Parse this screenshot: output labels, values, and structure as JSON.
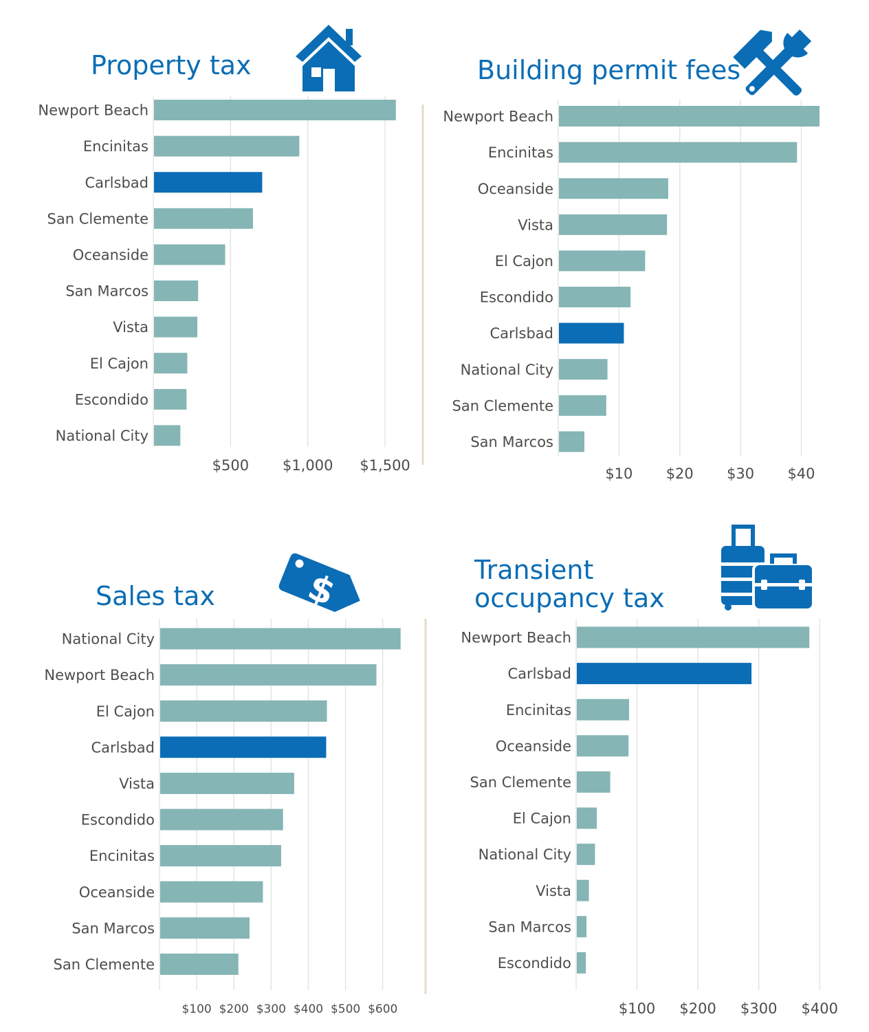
{
  "colors": {
    "bar": "#85b5b4",
    "highlight": "#0b6db5",
    "title": "#0b6db5",
    "text": "#4d4d4d",
    "grid": "#e1e1e1",
    "divider": "#e5dcc8",
    "icon": "#0b6db5"
  },
  "highlight_category": "Carlsbad",
  "chart_data": [
    {
      "type": "bar",
      "orientation": "horizontal",
      "title": "Property tax",
      "title_lines": [
        "Property tax"
      ],
      "icon": "house-icon",
      "categories": [
        "Newport Beach",
        "Encinitas",
        "Carlsbad",
        "San Clemente",
        "Oceanside",
        "San Marcos",
        "Vista",
        "El Cajon",
        "Escondido",
        "National City"
      ],
      "values": [
        1570,
        945,
        705,
        645,
        465,
        290,
        285,
        220,
        215,
        175
      ],
      "ticks": [
        500,
        1000,
        1500
      ],
      "tick_labels": [
        "$500",
        "$1,000",
        "$1,500"
      ],
      "xlim": [
        0,
        1700
      ]
    },
    {
      "type": "bar",
      "orientation": "horizontal",
      "title": "Building permit fees",
      "title_lines": [
        "Building permit fees"
      ],
      "icon": "wrench-hammer-icon",
      "categories": [
        "Newport Beach",
        "Encinitas",
        "Oceanside",
        "Vista",
        "El Cajon",
        "Escondido",
        "Carlsbad",
        "National City",
        "San Clemente",
        "San Marcos"
      ],
      "values": [
        43,
        39.3,
        18.1,
        17.9,
        14.3,
        11.9,
        10.8,
        8.1,
        7.9,
        4.3
      ],
      "ticks": [
        10,
        20,
        30,
        40
      ],
      "tick_labels": [
        "$10",
        "$20",
        "$30",
        "$40"
      ],
      "xlim": [
        0,
        43
      ]
    },
    {
      "type": "bar",
      "orientation": "horizontal",
      "title": "Sales tax",
      "title_lines": [
        "Sales tax"
      ],
      "icon": "price-tag-icon",
      "categories": [
        "National City",
        "Newport Beach",
        "El Cajon",
        "Carlsbad",
        "Vista",
        "Escondido",
        "Encinitas",
        "Oceanside",
        "San Marcos",
        "San Clemente"
      ],
      "values": [
        648,
        583,
        450,
        448,
        362,
        332,
        327,
        278,
        242,
        212
      ],
      "ticks": [
        100,
        200,
        300,
        400,
        500,
        600
      ],
      "tick_labels": [
        "$100",
        "$200",
        "$300",
        "$400",
        "$500",
        "$600"
      ],
      "xlim": [
        0,
        680
      ]
    },
    {
      "type": "bar",
      "orientation": "horizontal",
      "title": "Transient occupancy tax",
      "title_lines": [
        "Transient",
        "occupancy tax"
      ],
      "icon": "luggage-icon",
      "categories": [
        "Newport Beach",
        "Carlsbad",
        "Encinitas",
        "Oceanside",
        "San Clemente",
        "El Cajon",
        "National City",
        "Vista",
        "San Marcos",
        "Escondido"
      ],
      "values": [
        383,
        288,
        87,
        86,
        56,
        34,
        31,
        21,
        17,
        16
      ],
      "ticks": [
        100,
        200,
        300,
        400
      ],
      "tick_labels": [
        "$100",
        "$200",
        "$300",
        "$400"
      ],
      "xlim": [
        0,
        420
      ]
    }
  ]
}
